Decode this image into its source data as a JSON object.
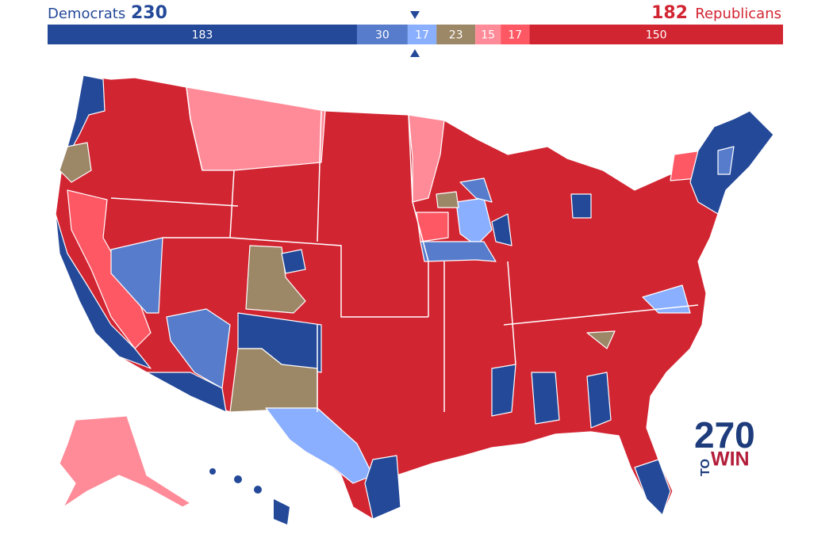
{
  "header": {
    "dem_label": "Democrats",
    "dem_total": 230,
    "rep_total": 182,
    "rep_label": "Republicans"
  },
  "bar": {
    "segments": [
      {
        "value": 183,
        "color": "#244999"
      },
      {
        "value": 30,
        "color": "#577ccc"
      },
      {
        "value": 17,
        "color": "#8aafff"
      },
      {
        "value": 23,
        "color": "#9c8767"
      },
      {
        "value": 15,
        "color": "#ff8b98"
      },
      {
        "value": 17,
        "color": "#ff5865"
      },
      {
        "value": 150,
        "color": "#d22532"
      }
    ]
  },
  "logo": {
    "number": "270",
    "to": "TO",
    "win": "WIN"
  }
}
